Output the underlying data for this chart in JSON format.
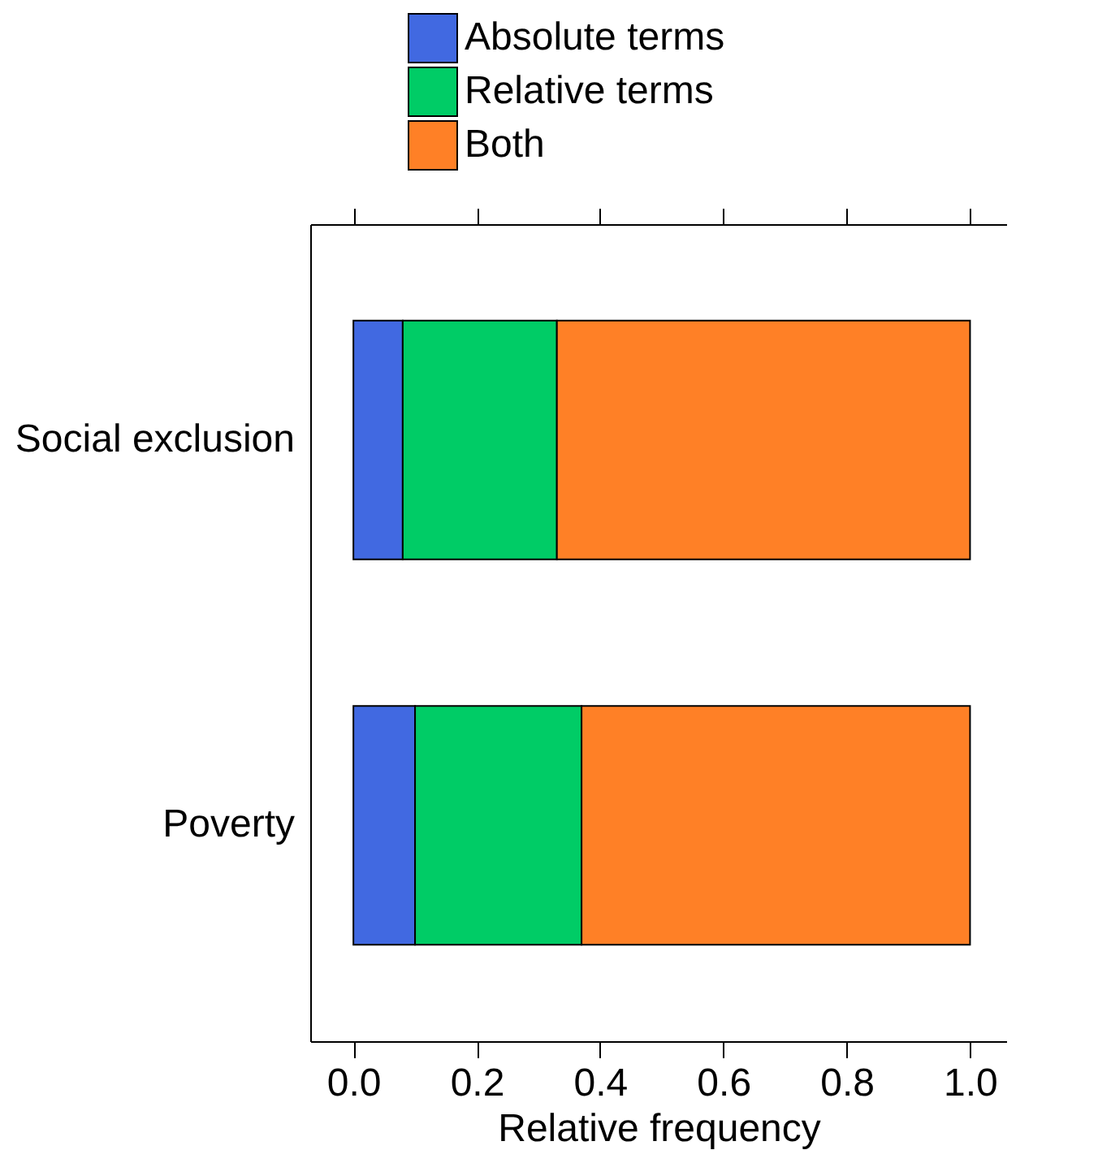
{
  "chart_data": {
    "type": "bar",
    "orientation": "horizontal",
    "stacked": true,
    "xlabel": "Relative frequency",
    "categories": [
      "Social exclusion",
      "Poverty"
    ],
    "series": [
      {
        "name": "Absolute terms",
        "color": "#4169e1",
        "values": [
          0.08,
          0.1
        ]
      },
      {
        "name": "Relative terms",
        "color": "#00cc66",
        "values": [
          0.25,
          0.27
        ]
      },
      {
        "name": "Both",
        "color": "#ff8026",
        "values": [
          0.67,
          0.63
        ]
      }
    ],
    "xlim": [
      -0.07,
      1.06
    ],
    "xticks": [
      {
        "value": 0,
        "label": "0.0"
      },
      0.2,
      0.4,
      0.6,
      0.8,
      {
        "value": 1,
        "label": "1.0"
      }
    ],
    "legend": "top",
    "grid": false
  }
}
